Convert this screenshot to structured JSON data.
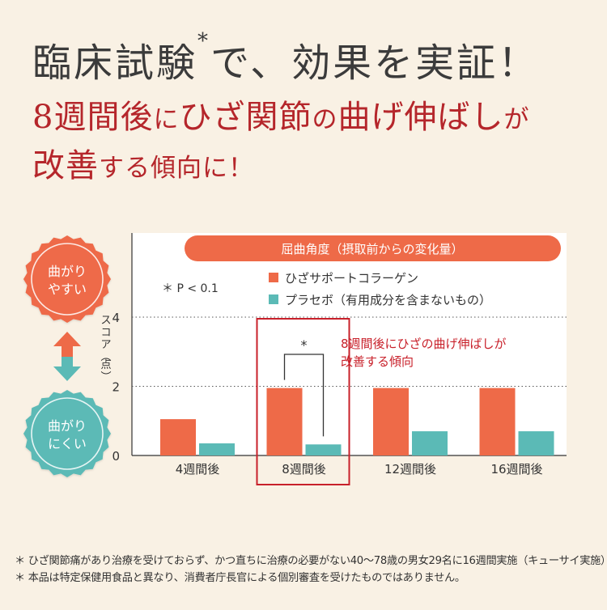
{
  "heading": {
    "line1_main": "臨床試験",
    "line1_mark": "*",
    "line1_rest": "で、効果を実証！",
    "line2": [
      {
        "text": "8週間後",
        "size": "big"
      },
      {
        "text": "に",
        "size": "small"
      },
      {
        "text": "ひざ関節",
        "size": "big"
      },
      {
        "text": "の",
        "size": "small"
      },
      {
        "text": "曲げ伸ばし",
        "size": "big"
      },
      {
        "text": "が",
        "size": "small"
      }
    ],
    "line3": [
      {
        "text": "改善",
        "size": "big"
      },
      {
        "text": "する傾向に！",
        "size": "small"
      }
    ]
  },
  "side_labels": {
    "top_line1": "曲がり",
    "top_line2": "やすい",
    "bottom_line1": "曲がり",
    "bottom_line2": "にくい"
  },
  "colors": {
    "collagen": "#ee6a48",
    "placebo": "#5bbab6",
    "highlight": "#c8202a",
    "pill": "#ee6a48",
    "arrow_up": "#ee6a48",
    "arrow_down": "#5bbab6"
  },
  "chart_data": {
    "type": "bar",
    "title": "屈曲角度（摂取前からの変化量）",
    "ylabel": "スコア（点）",
    "ylim": [
      0,
      4
    ],
    "yticks": [
      0,
      2,
      4
    ],
    "categories": [
      "4週間後",
      "8週間後",
      "12週間後",
      "16週間後"
    ],
    "series": [
      {
        "name": "ひざサポートコラーゲン",
        "values": [
          1.05,
          1.95,
          1.95,
          1.95
        ]
      },
      {
        "name": "プラセボ（有用成分を含まないもの）",
        "values": [
          0.35,
          0.32,
          0.7,
          0.7
        ]
      }
    ],
    "significance_note": "＊ P < 0.1",
    "significance_mark": "*",
    "highlight_category": "8週間後",
    "annotation_line1": "8週間後にひざの曲げ伸ばしが",
    "annotation_line2": "改善する傾向",
    "grid": "dotted",
    "legend": "top"
  },
  "footnotes": [
    "＊ ひざ関節痛があり治療を受けておらず、かつ直ちに治療の必要がない40〜78歳の男女29名に16週間実施（キューサイ実施）",
    "＊ 本品は特定保健用食品と異なり、消費者庁長官による個別審査を受けたものではありません。"
  ]
}
